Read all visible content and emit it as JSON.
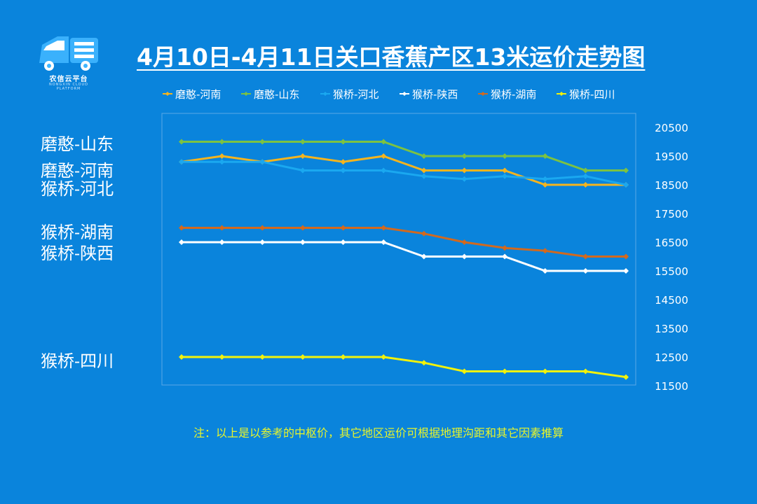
{
  "logo": {
    "text": "农信云平台",
    "sub": "NONGXIN CLOUD PLATFORM"
  },
  "title": "4月10日-4月11日关口香蕉产区13米运价走势图",
  "note": "注：以上是以参考的中枢价，其它地区运价可根据地理沟距和其它因素推算",
  "side_labels": [
    "磨憨-山东",
    "磨憨-河南",
    "猴桥-河北",
    "猴桥-湖南",
    "猴桥-陕西",
    "猴桥-四川"
  ],
  "chart_data": {
    "type": "line",
    "title": "4月10日-4月11日关口香蕉产区13米运价走势图",
    "xlabel": "",
    "ylabel": "",
    "ylim": [
      11500,
      20500
    ],
    "yticks": [
      20500,
      19500,
      18500,
      17500,
      16500,
      15500,
      14500,
      13500,
      12500,
      11500
    ],
    "x": [
      1,
      2,
      3,
      4,
      5,
      6,
      7,
      8,
      9,
      10,
      11,
      12
    ],
    "legend_position": "top",
    "grid": false,
    "series": [
      {
        "name": "磨憨-河南",
        "color": "#f5b41e",
        "values": [
          19300,
          19500,
          19300,
          19500,
          19300,
          19500,
          19000,
          19000,
          19000,
          18500,
          18500,
          18500
        ]
      },
      {
        "name": "磨憨-山东",
        "color": "#7cc242",
        "values": [
          20000,
          20000,
          20000,
          20000,
          20000,
          20000,
          19500,
          19500,
          19500,
          19500,
          19000,
          19000
        ]
      },
      {
        "name": "猴桥-河北",
        "color": "#1aa8f0",
        "values": [
          19300,
          19300,
          19300,
          19000,
          19000,
          19000,
          18800,
          18700,
          18800,
          18700,
          18800,
          18500
        ]
      },
      {
        "name": "猴桥-陕西",
        "color": "#ffffff",
        "values": [
          16500,
          16500,
          16500,
          16500,
          16500,
          16500,
          16000,
          16000,
          16000,
          15500,
          15500,
          15500
        ]
      },
      {
        "name": "猴桥-湖南",
        "color": "#d2691e",
        "values": [
          17000,
          17000,
          17000,
          17000,
          17000,
          17000,
          16800,
          16500,
          16300,
          16200,
          16000,
          16000
        ]
      },
      {
        "name": "猴桥-四川",
        "color": "#f2f20a",
        "values": [
          12500,
          12500,
          12500,
          12500,
          12500,
          12500,
          12300,
          12000,
          12000,
          12000,
          12000,
          11800
        ]
      }
    ]
  }
}
